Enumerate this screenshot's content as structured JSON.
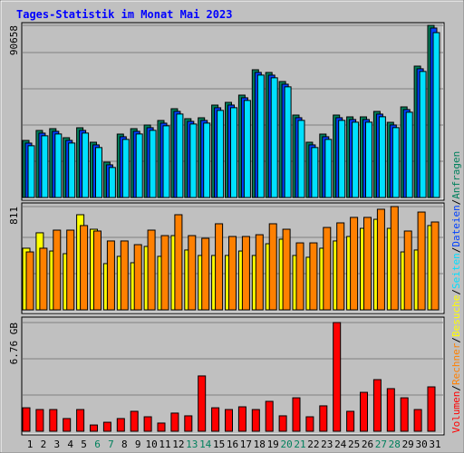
{
  "chart_data": [
    {
      "type": "bar",
      "title": "Tages-Statistik im Monat Mai 2023",
      "ylim": [
        0,
        90658
      ],
      "yticks": [
        90658
      ],
      "series": [
        {
          "name": "Anfragen",
          "color": "#00805C",
          "values": [
            30060,
            35310,
            36260,
            31490,
            36740,
            29110,
            18610,
            33400,
            36260,
            38170,
            40560,
            46760,
            41510,
            41990,
            48670,
            50100,
            53920,
            67280,
            65850,
            61080,
            43420,
            29110,
            33400,
            43420,
            42470,
            42470,
            45330,
            39600,
            47720,
            69190,
            90658
          ]
        },
        {
          "name": "Dateien",
          "color": "#0040FF",
          "values": [
            28660,
            33910,
            34860,
            30090,
            35340,
            27710,
            17210,
            32000,
            34860,
            36770,
            39160,
            45360,
            40110,
            40590,
            47270,
            48700,
            52520,
            65880,
            64450,
            59680,
            42020,
            27710,
            32000,
            42020,
            41070,
            41070,
            43930,
            38200,
            46320,
            67790,
            89250
          ]
        },
        {
          "name": "Seiten",
          "color": "#00E0FF",
          "values": [
            27260,
            32510,
            33460,
            28690,
            33940,
            26310,
            15810,
            30600,
            33460,
            35370,
            37760,
            43960,
            38710,
            39190,
            45870,
            47300,
            51120,
            64480,
            63050,
            58280,
            40620,
            26310,
            30600,
            40620,
            39670,
            39670,
            42530,
            36800,
            44920,
            66390,
            86840
          ]
        }
      ]
    },
    {
      "type": "bar",
      "ylim": [
        0,
        811
      ],
      "yticks": [
        811
      ],
      "series": [
        {
          "name": "Besuche",
          "color": "#FFFF00",
          "values": [
            484,
            605,
            462,
            441,
            747,
            633,
            363,
            420,
            370,
            498,
            420,
            583,
            470,
            427,
            427,
            427,
            462,
            427,
            519,
            555,
            427,
            413,
            484,
            541,
            576,
            640,
            711,
            640,
            455,
            470,
            662
          ]
        },
        {
          "name": "Rechner",
          "color": "#FF8000",
          "values": [
            455,
            484,
            626,
            626,
            662,
            619,
            541,
            541,
            512,
            626,
            583,
            747,
            583,
            562,
            676,
            576,
            576,
            590,
            676,
            633,
            526,
            526,
            647,
            683,
            726,
            726,
            790,
            811,
            619,
            768,
            690
          ]
        }
      ]
    },
    {
      "type": "bar",
      "ylim": [
        0,
        6.76
      ],
      "yticks": [
        {
          "value": 6.76,
          "label": "6.76 GB"
        }
      ],
      "categories": [
        "1",
        "2",
        "3",
        "4",
        "5",
        "6",
        "7",
        "8",
        "9",
        "10",
        "11",
        "12",
        "13",
        "14",
        "15",
        "16",
        "17",
        "18",
        "19",
        "20",
        "21",
        "22",
        "23",
        "24",
        "25",
        "26",
        "27",
        "28",
        "29",
        "30",
        "31"
      ],
      "category_colors": [
        "#000000",
        "#000000",
        "#000000",
        "#000000",
        "#000000",
        "#00805C",
        "#00805C",
        "#000000",
        "#000000",
        "#000000",
        "#000000",
        "#000000",
        "#00805C",
        "#00805C",
        "#000000",
        "#000000",
        "#000000",
        "#000000",
        "#000000",
        "#00805C",
        "#00805C",
        "#000000",
        "#000000",
        "#000000",
        "#000000",
        "#000000",
        "#00805C",
        "#00805C",
        "#000000",
        "#000000",
        "#000000"
      ],
      "legend_separator": "/",
      "series": [
        {
          "name": "Volumen",
          "color": "#FF0000",
          "values": [
            1.46,
            1.35,
            1.35,
            0.79,
            1.35,
            0.39,
            0.56,
            0.79,
            1.24,
            0.9,
            0.51,
            1.13,
            0.96,
            3.44,
            1.46,
            1.35,
            1.52,
            1.35,
            1.86,
            0.96,
            2.08,
            0.9,
            1.58,
            6.76,
            1.24,
            2.42,
            3.21,
            2.65,
            2.08,
            1.35,
            2.76
          ]
        }
      ]
    }
  ]
}
